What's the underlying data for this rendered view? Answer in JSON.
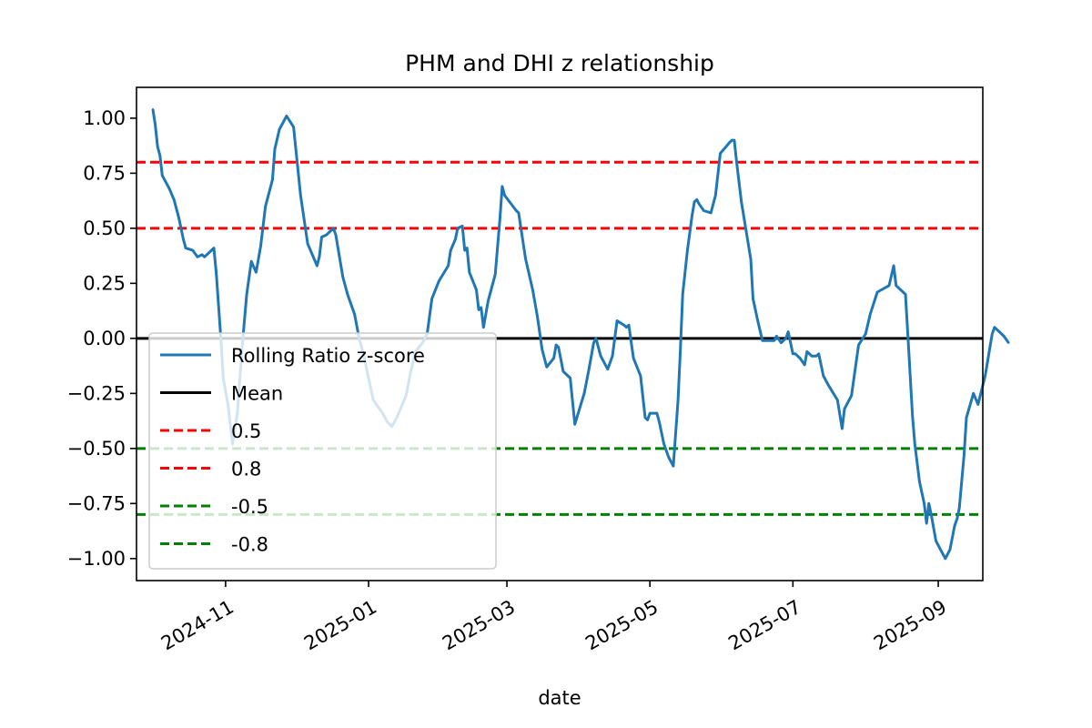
{
  "chart_data": {
    "type": "line",
    "title": "PHM and DHI z relationship",
    "xlabel": "date",
    "ylabel": "",
    "ylim": [
      -1.1,
      1.14
    ],
    "xlim": [
      "2024-09-24",
      "2025-09-20"
    ],
    "y_ticks": [
      1.0,
      0.75,
      0.5,
      0.25,
      0.0,
      -0.25,
      -0.5,
      -0.75,
      -1.0
    ],
    "y_tick_labels": [
      "1.00",
      "0.75",
      "0.50",
      "0.25",
      "0.00",
      "−0.25",
      "−0.50",
      "−0.75",
      "−1.00"
    ],
    "x_ticks": [
      "2024-11-01",
      "2025-01-01",
      "2025-03-01",
      "2025-05-01",
      "2025-07-01",
      "2025-09-01"
    ],
    "x_tick_labels": [
      "2024-11",
      "2025-01",
      "2025-03",
      "2025-05",
      "2025-07",
      "2025-09"
    ],
    "grid": false,
    "legend_position": "lower-left",
    "series": [
      {
        "name": "Rolling Ratio z-score",
        "color": "#1f77b4",
        "style": "solid",
        "points": [
          [
            "2024-10-01",
            1.04
          ],
          [
            "2024-10-02",
            0.97
          ],
          [
            "2024-10-03",
            0.87
          ],
          [
            "2024-10-04",
            0.83
          ],
          [
            "2024-10-05",
            0.74
          ],
          [
            "2024-10-08",
            0.68
          ],
          [
            "2024-10-10",
            0.63
          ],
          [
            "2024-10-12",
            0.55
          ],
          [
            "2024-10-14",
            0.45
          ],
          [
            "2024-10-15",
            0.41
          ],
          [
            "2024-10-18",
            0.4
          ],
          [
            "2024-10-20",
            0.37
          ],
          [
            "2024-10-22",
            0.38
          ],
          [
            "2024-10-23",
            0.37
          ],
          [
            "2024-10-26",
            0.4
          ],
          [
            "2024-10-27",
            0.41
          ],
          [
            "2024-10-28",
            0.3
          ],
          [
            "2024-10-30",
            0.0
          ],
          [
            "2024-10-31",
            -0.18
          ],
          [
            "2024-11-02",
            -0.3
          ],
          [
            "2024-11-04",
            -0.48
          ],
          [
            "2024-11-06",
            -0.34
          ],
          [
            "2024-11-08",
            -0.05
          ],
          [
            "2024-11-10",
            0.2
          ],
          [
            "2024-11-12",
            0.35
          ],
          [
            "2024-11-14",
            0.3
          ],
          [
            "2024-11-16",
            0.42
          ],
          [
            "2024-11-18",
            0.6
          ],
          [
            "2024-11-21",
            0.72
          ],
          [
            "2024-11-22",
            0.86
          ],
          [
            "2024-11-24",
            0.95
          ],
          [
            "2024-11-27",
            1.01
          ],
          [
            "2024-11-30",
            0.96
          ],
          [
            "2024-12-03",
            0.65
          ],
          [
            "2024-12-06",
            0.43
          ],
          [
            "2024-12-10",
            0.33
          ],
          [
            "2024-12-11",
            0.37
          ],
          [
            "2024-12-12",
            0.46
          ],
          [
            "2024-12-14",
            0.47
          ],
          [
            "2024-12-16",
            0.49
          ],
          [
            "2024-12-17",
            0.5
          ],
          [
            "2024-12-18",
            0.47
          ],
          [
            "2024-12-21",
            0.28
          ],
          [
            "2024-12-23",
            0.2
          ],
          [
            "2024-12-26",
            0.11
          ],
          [
            "2024-12-28",
            0.0
          ],
          [
            "2024-12-30",
            -0.08
          ],
          [
            "2025-01-01",
            -0.18
          ],
          [
            "2025-01-03",
            -0.28
          ],
          [
            "2025-01-05",
            -0.31
          ],
          [
            "2025-01-07",
            -0.34
          ],
          [
            "2025-01-09",
            -0.38
          ],
          [
            "2025-01-11",
            -0.4
          ],
          [
            "2025-01-13",
            -0.36
          ],
          [
            "2025-01-15",
            -0.31
          ],
          [
            "2025-01-17",
            -0.26
          ],
          [
            "2025-01-19",
            -0.15
          ],
          [
            "2025-01-21",
            -0.06
          ],
          [
            "2025-01-24",
            -0.02
          ],
          [
            "2025-01-26",
            0.02
          ],
          [
            "2025-01-28",
            0.18
          ],
          [
            "2025-01-31",
            0.26
          ],
          [
            "2025-02-04",
            0.33
          ],
          [
            "2025-02-05",
            0.4
          ],
          [
            "2025-02-07",
            0.45
          ],
          [
            "2025-02-08",
            0.5
          ],
          [
            "2025-02-10",
            0.51
          ],
          [
            "2025-02-11",
            0.4
          ],
          [
            "2025-02-12",
            0.41
          ],
          [
            "2025-02-13",
            0.3
          ],
          [
            "2025-02-16",
            0.22
          ],
          [
            "2025-02-17",
            0.13
          ],
          [
            "2025-02-18",
            0.14
          ],
          [
            "2025-02-19",
            0.05
          ],
          [
            "2025-02-21",
            0.17
          ],
          [
            "2025-02-24",
            0.29
          ],
          [
            "2025-02-26",
            0.54
          ],
          [
            "2025-02-27",
            0.69
          ],
          [
            "2025-02-28",
            0.65
          ],
          [
            "2025-03-05",
            0.58
          ],
          [
            "2025-03-06",
            0.57
          ],
          [
            "2025-03-09",
            0.36
          ],
          [
            "2025-03-12",
            0.22
          ],
          [
            "2025-03-14",
            0.1
          ],
          [
            "2025-03-16",
            -0.05
          ],
          [
            "2025-03-18",
            -0.13
          ],
          [
            "2025-03-21",
            -0.09
          ],
          [
            "2025-03-22",
            -0.03
          ],
          [
            "2025-03-23",
            -0.04
          ],
          [
            "2025-03-25",
            -0.15
          ],
          [
            "2025-03-28",
            -0.18
          ],
          [
            "2025-03-30",
            -0.39
          ],
          [
            "2025-04-03",
            -0.25
          ],
          [
            "2025-04-05",
            -0.14
          ],
          [
            "2025-04-07",
            -0.02
          ],
          [
            "2025-04-08",
            0.0
          ],
          [
            "2025-04-10",
            -0.08
          ],
          [
            "2025-04-13",
            -0.14
          ],
          [
            "2025-04-15",
            -0.08
          ],
          [
            "2025-04-17",
            0.08
          ],
          [
            "2025-04-20",
            0.06
          ],
          [
            "2025-04-21",
            0.05
          ],
          [
            "2025-04-22",
            0.06
          ],
          [
            "2025-04-24",
            -0.09
          ],
          [
            "2025-04-27",
            -0.17
          ],
          [
            "2025-04-29",
            -0.36
          ],
          [
            "2025-04-30",
            -0.37
          ],
          [
            "2025-05-01",
            -0.34
          ],
          [
            "2025-05-04",
            -0.34
          ],
          [
            "2025-05-05",
            -0.38
          ],
          [
            "2025-05-07",
            -0.48
          ],
          [
            "2025-05-09",
            -0.54
          ],
          [
            "2025-05-11",
            -0.58
          ],
          [
            "2025-05-13",
            -0.28
          ],
          [
            "2025-05-14",
            -0.05
          ],
          [
            "2025-05-15",
            0.2
          ],
          [
            "2025-05-17",
            0.4
          ],
          [
            "2025-05-19",
            0.56
          ],
          [
            "2025-05-20",
            0.62
          ],
          [
            "2025-05-21",
            0.63
          ],
          [
            "2025-05-22",
            0.61
          ],
          [
            "2025-05-24",
            0.58
          ],
          [
            "2025-05-27",
            0.57
          ],
          [
            "2025-05-29",
            0.65
          ],
          [
            "2025-05-31",
            0.84
          ],
          [
            "2025-06-04",
            0.89
          ],
          [
            "2025-06-05",
            0.9
          ],
          [
            "2025-06-06",
            0.9
          ],
          [
            "2025-06-07",
            0.8
          ],
          [
            "2025-06-09",
            0.62
          ],
          [
            "2025-06-13",
            0.36
          ],
          [
            "2025-06-14",
            0.18
          ],
          [
            "2025-06-16",
            0.08
          ],
          [
            "2025-06-18",
            -0.01
          ],
          [
            "2025-06-23",
            -0.01
          ],
          [
            "2025-06-24",
            0.01
          ],
          [
            "2025-06-26",
            -0.02
          ],
          [
            "2025-06-28",
            0.0
          ],
          [
            "2025-06-29",
            0.03
          ],
          [
            "2025-07-01",
            -0.07
          ],
          [
            "2025-07-02",
            -0.07
          ],
          [
            "2025-07-04",
            -0.09
          ],
          [
            "2025-07-06",
            -0.12
          ],
          [
            "2025-07-07",
            -0.06
          ],
          [
            "2025-07-08",
            -0.07
          ],
          [
            "2025-07-09",
            -0.08
          ],
          [
            "2025-07-11",
            -0.08
          ],
          [
            "2025-07-12",
            -0.07
          ],
          [
            "2025-07-14",
            -0.17
          ],
          [
            "2025-07-16",
            -0.21
          ],
          [
            "2025-07-20",
            -0.28
          ],
          [
            "2025-07-22",
            -0.41
          ],
          [
            "2025-07-23",
            -0.32
          ],
          [
            "2025-07-26",
            -0.26
          ],
          [
            "2025-07-29",
            -0.03
          ],
          [
            "2025-08-01",
            0.02
          ],
          [
            "2025-08-03",
            0.11
          ],
          [
            "2025-08-06",
            0.21
          ],
          [
            "2025-08-11",
            0.24
          ],
          [
            "2025-08-13",
            0.33
          ],
          [
            "2025-08-14",
            0.24
          ],
          [
            "2025-08-18",
            0.2
          ],
          [
            "2025-08-19",
            0.02
          ],
          [
            "2025-08-21",
            -0.35
          ],
          [
            "2025-08-22",
            -0.48
          ],
          [
            "2025-08-24",
            -0.65
          ],
          [
            "2025-08-26",
            -0.75
          ],
          [
            "2025-08-27",
            -0.84
          ],
          [
            "2025-08-28",
            -0.75
          ],
          [
            "2025-08-29",
            -0.8
          ],
          [
            "2025-08-31",
            -0.92
          ],
          [
            "2025-09-02",
            -0.96
          ],
          [
            "2025-09-04",
            -1.0
          ],
          [
            "2025-09-06",
            -0.96
          ],
          [
            "2025-09-08",
            -0.85
          ],
          [
            "2025-09-09",
            -0.82
          ],
          [
            "2025-09-10",
            -0.77
          ],
          [
            "2025-09-12",
            -0.53
          ],
          [
            "2025-09-13",
            -0.36
          ],
          [
            "2025-09-16",
            -0.25
          ],
          [
            "2025-09-18",
            -0.3
          ],
          [
            "2025-09-21",
            -0.17
          ],
          [
            "2025-09-24",
            0.02
          ],
          [
            "2025-09-25",
            0.05
          ],
          [
            "2025-09-29",
            0.01
          ],
          [
            "2025-10-01",
            -0.02
          ]
        ]
      }
    ],
    "reference_lines": [
      {
        "name": "Mean",
        "y": 0.0,
        "color": "#000000",
        "style": "solid"
      },
      {
        "name": "0.5",
        "y": 0.5,
        "color": "#ff0000",
        "style": "dashed"
      },
      {
        "name": "0.8",
        "y": 0.8,
        "color": "#ff0000",
        "style": "dashed"
      },
      {
        "name": "-0.5",
        "y": -0.5,
        "color": "#008000",
        "style": "dashed"
      },
      {
        "name": "-0.8",
        "y": -0.8,
        "color": "#008000",
        "style": "dashed"
      }
    ],
    "legend": [
      {
        "label": "Rolling Ratio z-score",
        "color": "#1f77b4",
        "style": "solid"
      },
      {
        "label": "Mean",
        "color": "#000000",
        "style": "solid"
      },
      {
        "label": "0.5",
        "color": "#ff0000",
        "style": "dashed"
      },
      {
        "label": "0.8",
        "color": "#ff0000",
        "style": "dashed"
      },
      {
        "label": "-0.5",
        "color": "#008000",
        "style": "dashed"
      },
      {
        "label": "-0.8",
        "color": "#008000",
        "style": "dashed"
      }
    ]
  }
}
